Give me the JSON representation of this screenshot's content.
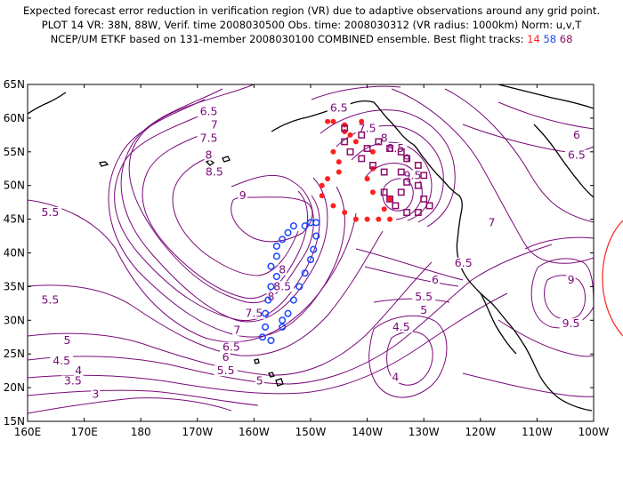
{
  "header": {
    "line1": "Expected forecast error reduction in verification region (VR) due to adaptive observations around any grid point.",
    "line2": "PLOT 14 VR: 38N, 88W, Verif. time 2008030500 Obs. time: 2008030312 (VR radius: 1000km) Norm: u,v,T",
    "line3_prefix": "NCEP/UM ETKF based on 131-member 2008030100 COMBINED ensemble.  Best flight tracks: ",
    "track_a": "14",
    "track_b": "58",
    "track_c": "68"
  },
  "colors": {
    "contour": "#7a0a7a",
    "coast": "#000000",
    "track_a": "#ff2020",
    "track_b": "#1a46ff",
    "track_c": "#8a0e6a",
    "vr_circle": "#ff3030"
  },
  "axes": {
    "lat_labels": [
      "65N",
      "60N",
      "55N",
      "50N",
      "45N",
      "40N",
      "35N",
      "30N",
      "25N",
      "20N",
      "15N"
    ],
    "lon_labels": [
      "160E",
      "170E",
      "180",
      "170W",
      "160W",
      "150W",
      "140W",
      "130W",
      "120W",
      "110W",
      "100W"
    ]
  },
  "contour_labels": [
    {
      "text": "6.5",
      "lon": -145,
      "lat": 61.5
    },
    {
      "text": "6.5",
      "lon": -168,
      "lat": 61
    },
    {
      "text": "7",
      "lon": -167,
      "lat": 59
    },
    {
      "text": "7.5",
      "lon": -168,
      "lat": 57
    },
    {
      "text": "8",
      "lon": -168,
      "lat": 54.5
    },
    {
      "text": "8.5",
      "lon": -167,
      "lat": 52
    },
    {
      "text": "9",
      "lon": -162,
      "lat": 48.5
    },
    {
      "text": "5.5",
      "lon": 164,
      "lat": 46
    },
    {
      "text": "7.5",
      "lon": -140,
      "lat": 58.5
    },
    {
      "text": "8",
      "lon": -137,
      "lat": 57
    },
    {
      "text": "8.5",
      "lon": -135,
      "lat": 55.5
    },
    {
      "text": "9",
      "lon": -133,
      "lat": 54
    },
    {
      "text": "9.5",
      "lon": -132,
      "lat": 51.5
    },
    {
      "text": "8",
      "lon": -155,
      "lat": 37.5
    },
    {
      "text": "8.5",
      "lon": -155,
      "lat": 35
    },
    {
      "text": "8",
      "lon": -157,
      "lat": 33.5
    },
    {
      "text": "7.5",
      "lon": -160,
      "lat": 31
    },
    {
      "text": "7",
      "lon": -163,
      "lat": 28.5
    },
    {
      "text": "6.5",
      "lon": -164,
      "lat": 26
    },
    {
      "text": "6",
      "lon": -165,
      "lat": 24.5
    },
    {
      "text": "5.5",
      "lon": -165,
      "lat": 22.5
    },
    {
      "text": "5",
      "lon": -159,
      "lat": 21
    },
    {
      "text": "5.5",
      "lon": 164,
      "lat": 33
    },
    {
      "text": "5",
      "lon": 167,
      "lat": 27
    },
    {
      "text": "4.5",
      "lon": 166,
      "lat": 24
    },
    {
      "text": "4",
      "lon": 169,
      "lat": 22.5
    },
    {
      "text": "3.5",
      "lon": 168,
      "lat": 21
    },
    {
      "text": "3",
      "lon": 172,
      "lat": 19
    },
    {
      "text": "7",
      "lon": -118,
      "lat": 44.5
    },
    {
      "text": "6.5",
      "lon": -123,
      "lat": 38.5
    },
    {
      "text": "6",
      "lon": -128,
      "lat": 36
    },
    {
      "text": "5.5",
      "lon": -130,
      "lat": 33.5
    },
    {
      "text": "5",
      "lon": -130,
      "lat": 31.5
    },
    {
      "text": "4.5",
      "lon": -134,
      "lat": 29
    },
    {
      "text": "4",
      "lon": -135,
      "lat": 21.5
    },
    {
      "text": "6",
      "lon": -103,
      "lat": 57.5
    },
    {
      "text": "6.5",
      "lon": -103,
      "lat": 54.5
    },
    {
      "text": "9",
      "lon": -104,
      "lat": 36
    },
    {
      "text": "9.5",
      "lon": -104,
      "lat": 29.5
    }
  ],
  "tracks": [
    {
      "name": "14",
      "color_key": "track_a",
      "shape": "dot",
      "points": [
        [
          -147,
          59.5
        ],
        [
          -144,
          58
        ],
        [
          -146,
          55
        ],
        [
          -145,
          53.5
        ],
        [
          -145,
          52
        ],
        [
          -147,
          51
        ],
        [
          -148,
          50
        ],
        [
          -148,
          48.5
        ],
        [
          -146,
          47
        ],
        [
          -144,
          46
        ],
        [
          -142,
          45
        ],
        [
          -140,
          45
        ],
        [
          -138,
          45
        ],
        [
          -136,
          45
        ],
        [
          -137,
          46.5
        ],
        [
          -136,
          48
        ],
        [
          -139,
          49
        ],
        [
          -140,
          51
        ],
        [
          -139,
          52.5
        ],
        [
          -139,
          55
        ],
        [
          -142,
          56.5
        ],
        [
          -143,
          57.5
        ],
        [
          -144,
          59
        ],
        [
          -141,
          59.5
        ],
        [
          -146,
          59.5
        ]
      ]
    },
    {
      "name": "58",
      "color_key": "track_b",
      "shape": "circle",
      "points": [
        [
          -150,
          44.5
        ],
        [
          -151,
          44
        ],
        [
          -153,
          44
        ],
        [
          -154,
          43
        ],
        [
          -155,
          42
        ],
        [
          -156,
          41
        ],
        [
          -156,
          39.5
        ],
        [
          -157,
          38
        ],
        [
          -156,
          36.5
        ],
        [
          -157,
          35
        ],
        [
          -157.5,
          33
        ],
        [
          -158,
          31
        ],
        [
          -158,
          29
        ],
        [
          -158.5,
          27.5
        ],
        [
          -157,
          27
        ],
        [
          -155,
          29
        ],
        [
          -154,
          31
        ],
        [
          -153,
          33
        ],
        [
          -152,
          35
        ],
        [
          -151,
          37
        ],
        [
          -150,
          39
        ],
        [
          -149.5,
          40.5
        ],
        [
          -149,
          42.5
        ],
        [
          -149,
          44.5
        ],
        [
          -155,
          30
        ]
      ]
    },
    {
      "name": "68",
      "color_key": "track_c",
      "shape": "square",
      "points": [
        [
          -144,
          58.5
        ],
        [
          -141,
          57.5
        ],
        [
          -138,
          56.5
        ],
        [
          -136,
          55.5
        ],
        [
          -134,
          55
        ],
        [
          -133,
          54
        ],
        [
          -131,
          53
        ],
        [
          -130,
          51.5
        ],
        [
          -131,
          50
        ],
        [
          -130,
          48
        ],
        [
          -129,
          47
        ],
        [
          -131,
          46
        ],
        [
          -133,
          46
        ],
        [
          -135,
          47
        ],
        [
          -136,
          48
        ],
        [
          -134,
          49
        ],
        [
          -133,
          50.5
        ],
        [
          -134,
          52
        ],
        [
          -137,
          52
        ],
        [
          -139,
          53
        ],
        [
          -141,
          54
        ],
        [
          -143,
          55
        ],
        [
          -144,
          56.5
        ],
        [
          -140,
          55.5
        ],
        [
          -137,
          49
        ]
      ]
    }
  ]
}
